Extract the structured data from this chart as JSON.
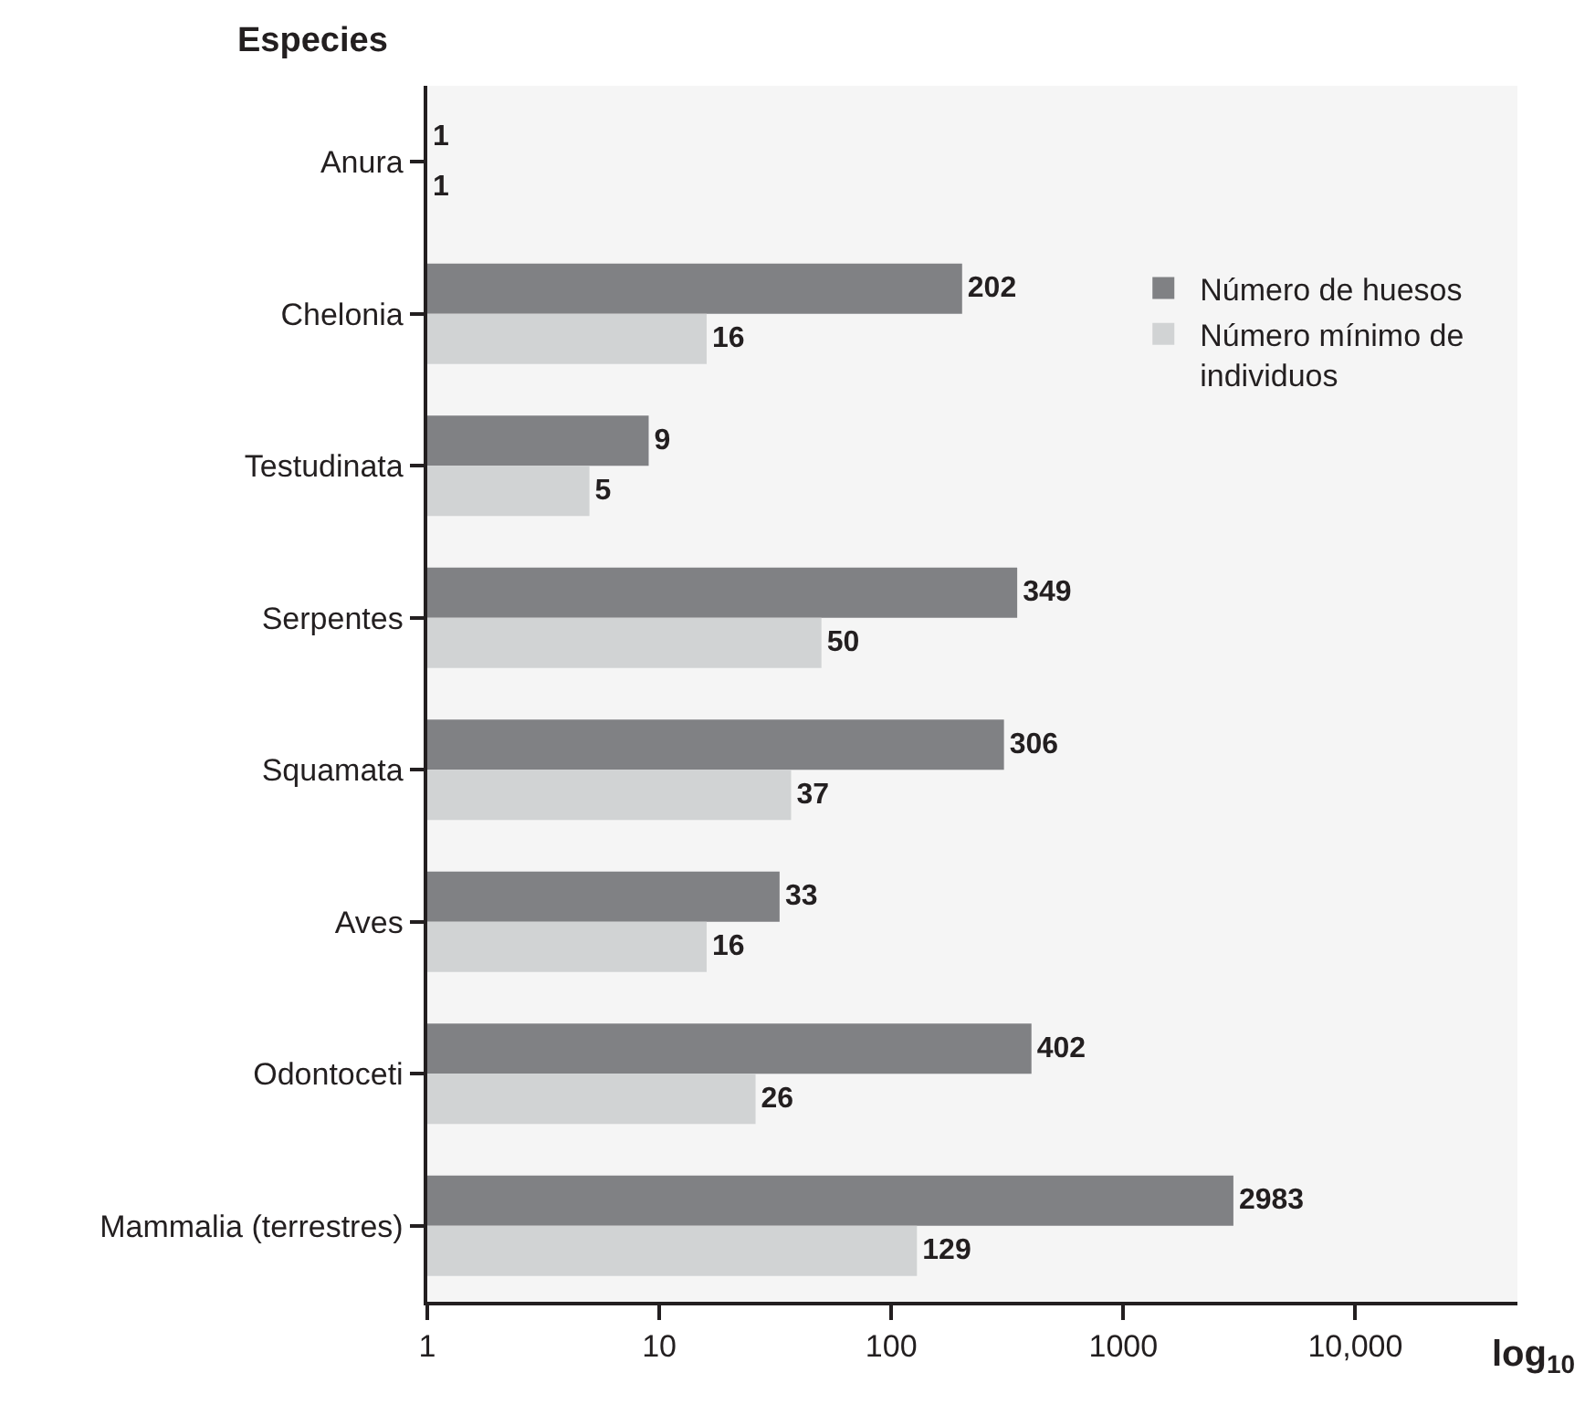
{
  "chart_data": {
    "type": "bar",
    "orientation": "horizontal",
    "ylabel": "Especies",
    "xlabel": "log$_{10}$",
    "categories": [
      "Anura",
      "Chelonia",
      "Testudinata",
      "Serpentes",
      "Squamata",
      "Aves",
      "Odontoceti",
      "Mammalia (terrestres)"
    ],
    "series": [
      {
        "name": "Número de huesos",
        "color": "#808184",
        "values": [
          1,
          202,
          9,
          349,
          306,
          33,
          402,
          2983
        ]
      },
      {
        "name": "Número mínimo de individuos",
        "color": "#d1d3d4",
        "values": [
          1,
          16,
          5,
          50,
          37,
          16,
          26,
          129
        ]
      }
    ],
    "log": "x",
    "xlim": [
      1,
      50000
    ],
    "xticks": [
      1,
      10,
      100,
      1000,
      {
        "value": 10000,
        "label": "10,000"
      }
    ],
    "data_labels": true,
    "legend": "top right"
  }
}
